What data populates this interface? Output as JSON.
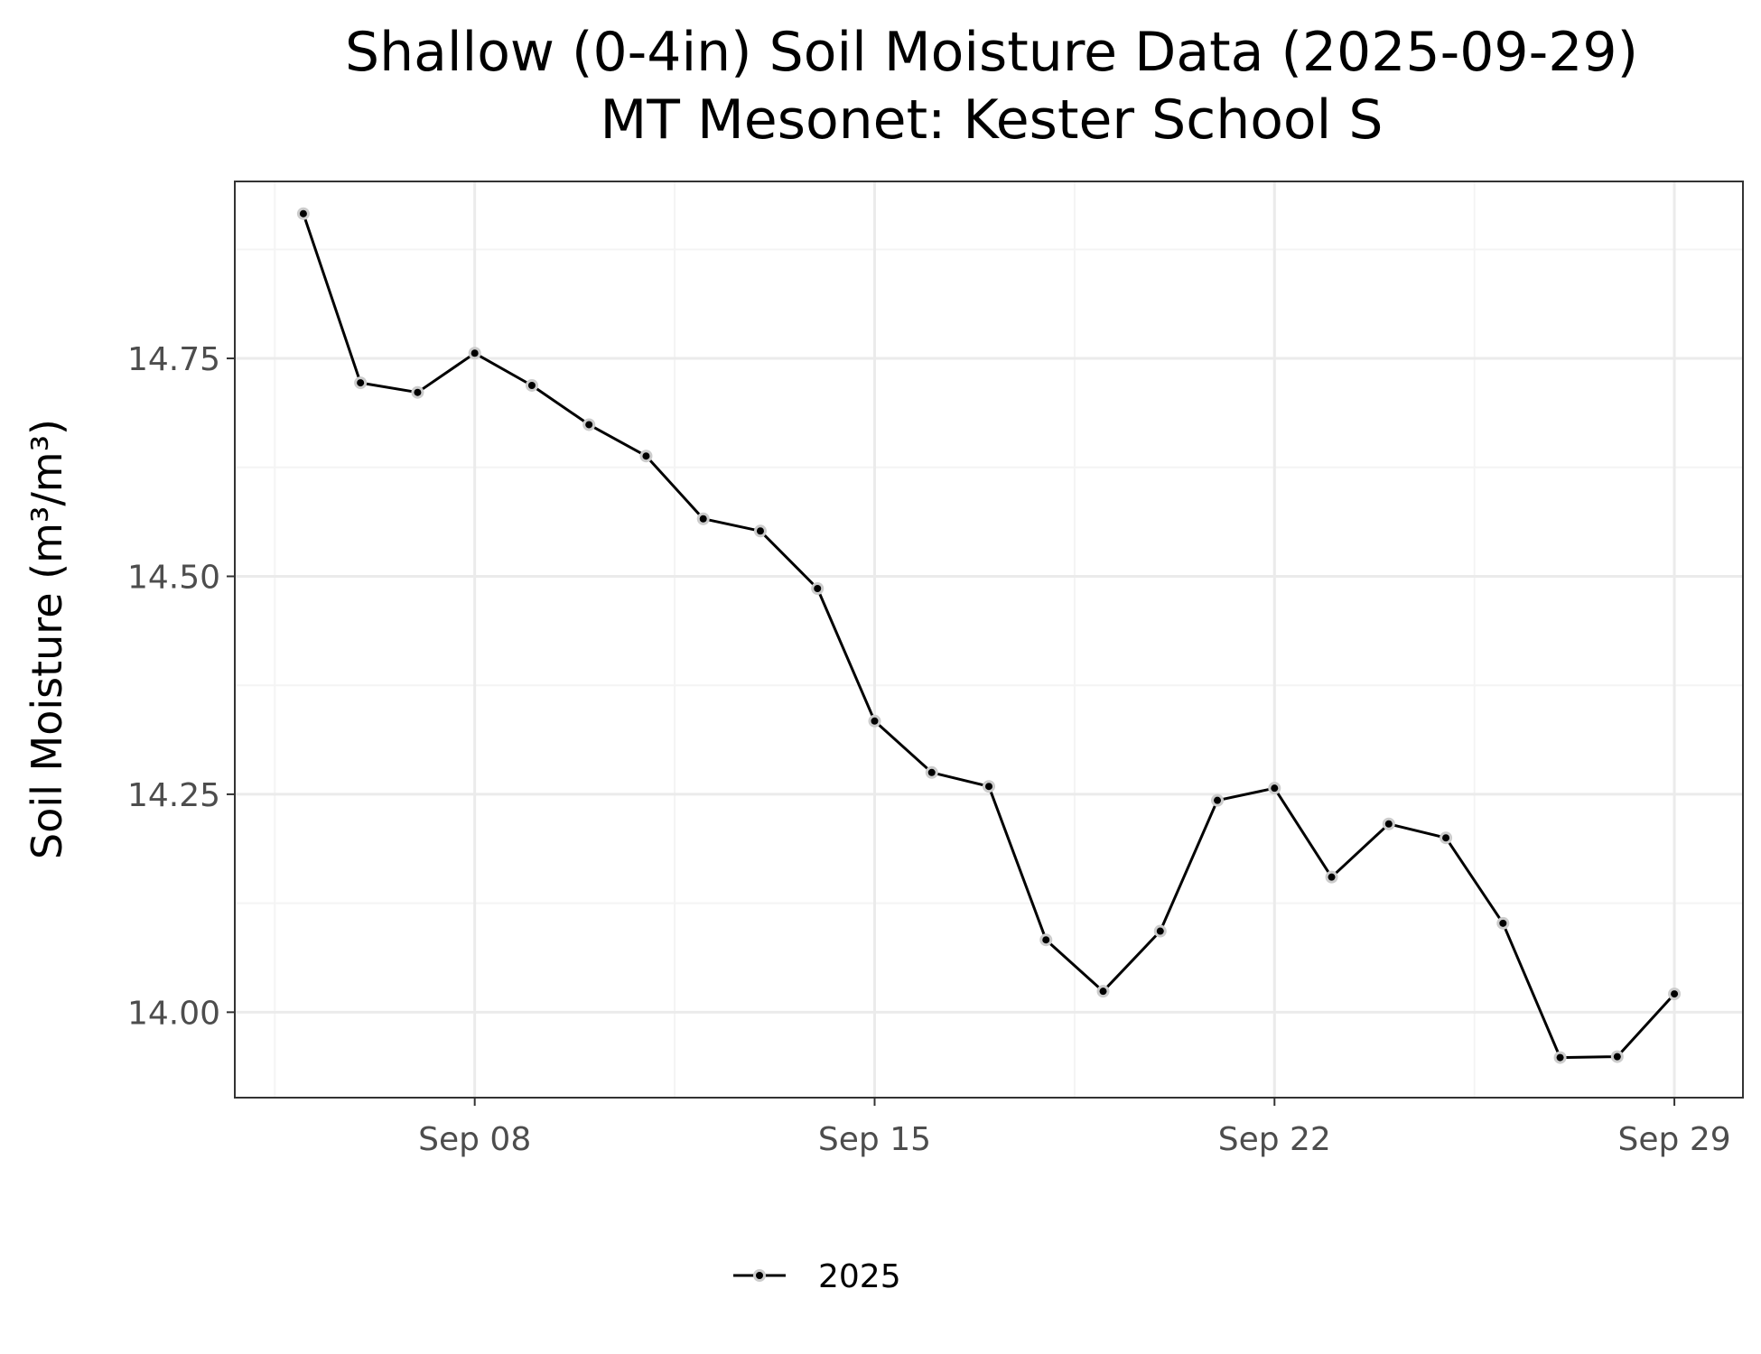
{
  "chart_data": {
    "type": "line",
    "title": "Shallow (0-4in) Soil Moisture Data (2025-09-29)",
    "subtitle": "MT Mesonet: Kester School S",
    "ylabel": "Soil Moisture (m³/m³)",
    "xlabel": "",
    "x_ticks": [
      {
        "date": "2025-09-08",
        "label": "Sep 08"
      },
      {
        "date": "2025-09-15",
        "label": "Sep 15"
      },
      {
        "date": "2025-09-22",
        "label": "Sep 22"
      },
      {
        "date": "2025-09-29",
        "label": "Sep 29"
      }
    ],
    "y_ticks": [
      {
        "value": 14.0,
        "label": "14.00"
      },
      {
        "value": 14.25,
        "label": "14.25"
      },
      {
        "value": 14.5,
        "label": "14.50"
      },
      {
        "value": 14.75,
        "label": "14.75"
      }
    ],
    "xlim": [
      "2025-09-03T19:12",
      "2025-09-30T04:48"
    ],
    "ylim": [
      13.902,
      14.953
    ],
    "grid": true,
    "legend_position": "bottom",
    "colors": {
      "line": "#000000",
      "point_halo": "#cccccc",
      "panel_border": "#333333",
      "grid_major": "#ebebeb",
      "grid_minor": "#f4f4f4"
    },
    "series": [
      {
        "name": "2025",
        "x": [
          "2025-09-05",
          "2025-09-06",
          "2025-09-07",
          "2025-09-08",
          "2025-09-09",
          "2025-09-10",
          "2025-09-11",
          "2025-09-12",
          "2025-09-13",
          "2025-09-14",
          "2025-09-15",
          "2025-09-16",
          "2025-09-17",
          "2025-09-18",
          "2025-09-19",
          "2025-09-20",
          "2025-09-21",
          "2025-09-22",
          "2025-09-23",
          "2025-09-24",
          "2025-09-25",
          "2025-09-26",
          "2025-09-27",
          "2025-09-28",
          "2025-09-29"
        ],
        "y": [
          14.916,
          14.722,
          14.711,
          14.756,
          14.719,
          14.674,
          14.638,
          14.566,
          14.552,
          14.486,
          14.334,
          14.275,
          14.259,
          14.083,
          14.024,
          14.093,
          14.243,
          14.257,
          14.155,
          14.216,
          14.2,
          14.102,
          13.948,
          13.949,
          14.021
        ]
      }
    ]
  }
}
